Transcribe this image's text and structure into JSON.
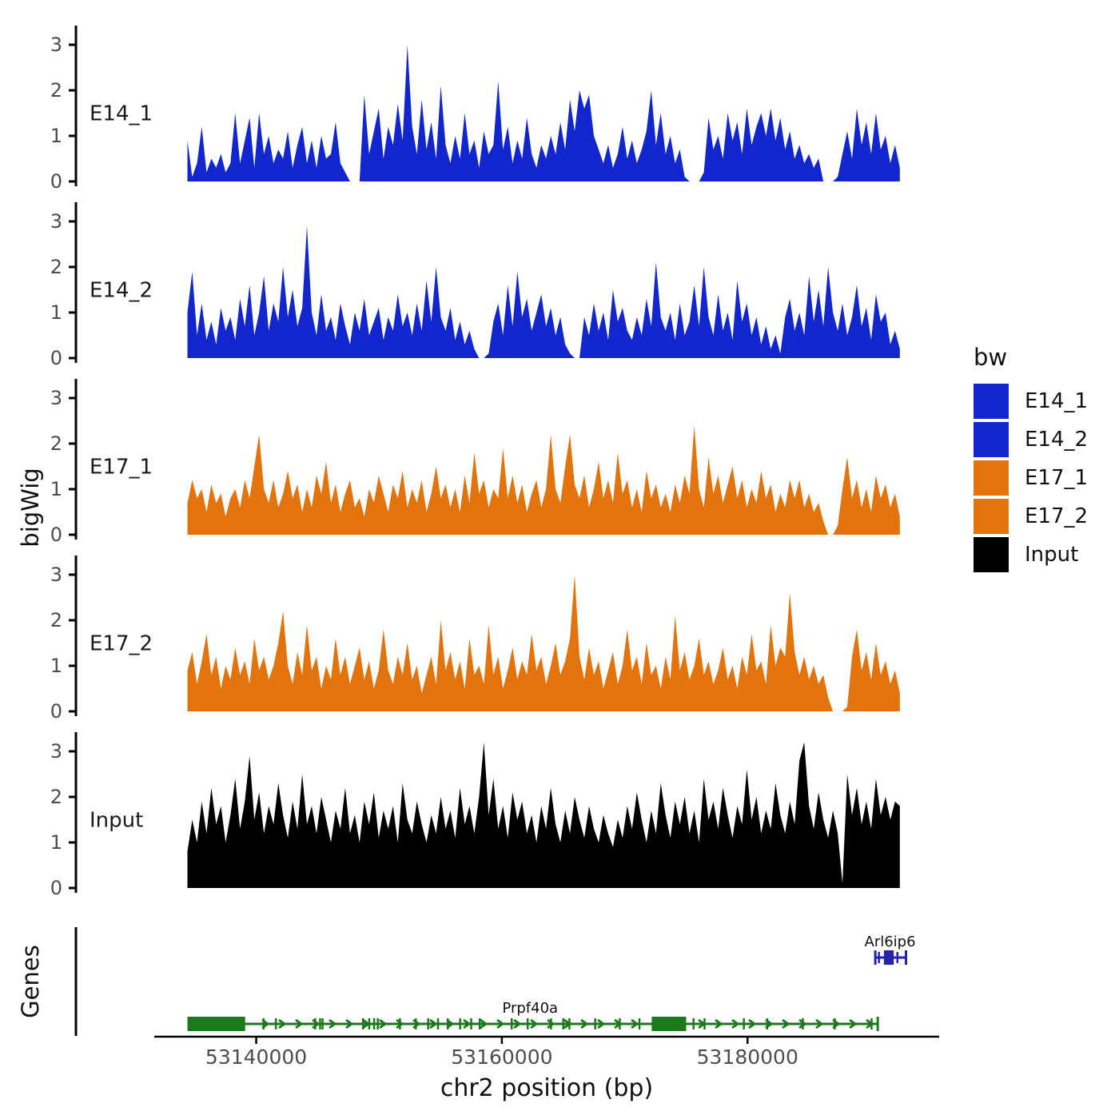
{
  "axes": {
    "y_title": "bigWig",
    "genes_title": "Genes",
    "x_title": "chr2 position (bp)"
  },
  "legend": {
    "title": "bw",
    "entries": [
      {
        "label": "E14_1",
        "color": "#1226CE"
      },
      {
        "label": "E14_2",
        "color": "#1226CE"
      },
      {
        "label": "E17_1",
        "color": "#E2730D"
      },
      {
        "label": "E17_2",
        "color": "#E2730D"
      },
      {
        "label": "Input",
        "color": "#000000"
      }
    ]
  },
  "chart_data": {
    "type": "area",
    "title": "",
    "xlabel": "chr2 position (bp)",
    "ylabel": "bigWig",
    "x_domain": [
      53131700,
      53195600
    ],
    "signal_span": [
      53134400,
      53192400
    ],
    "x_ticks": [
      {
        "pos": 53140000,
        "label": "53140000"
      },
      {
        "pos": 53160000,
        "label": "53160000"
      },
      {
        "pos": 53180000,
        "label": "53180000"
      }
    ],
    "y_ticks": [
      0,
      1,
      2,
      3
    ],
    "ylim": [
      0,
      3.3
    ],
    "tracks": [
      {
        "name": "E14_1",
        "color": "#1226CE",
        "values": [
          0.9,
          0.1,
          0.4,
          1.2,
          0.2,
          0.5,
          0.3,
          0.6,
          0.2,
          0.4,
          1.5,
          0.4,
          0.9,
          1.4,
          0.3,
          1.5,
          0.6,
          1.0,
          0.4,
          0.7,
          0.5,
          1.1,
          0.3,
          0.8,
          1.2,
          0.4,
          0.9,
          0.3,
          1.0,
          0.5,
          0.6,
          1.3,
          0.4,
          0.2,
          0,
          0,
          0,
          1.9,
          0.6,
          1.1,
          1.6,
          0.5,
          1.2,
          0.8,
          1.7,
          0.9,
          3.0,
          1.2,
          0.6,
          1.8,
          0.7,
          1.3,
          0.5,
          2.1,
          0.8,
          0.4,
          1.0,
          0.5,
          1.5,
          0.6,
          0.9,
          0.3,
          1.1,
          0.6,
          0.8,
          2.2,
          0.7,
          1.2,
          0.4,
          0.9,
          0.5,
          1.4,
          0.6,
          0.3,
          0.8,
          0.5,
          1.0,
          0.6,
          1.3,
          0.7,
          1.8,
          1.1,
          2.0,
          1.6,
          1.9,
          1.0,
          0.7,
          0.4,
          0.8,
          0.3,
          0.6,
          1.2,
          0.5,
          0.9,
          0.4,
          0.7,
          1.1,
          2.0,
          0.8,
          1.5,
          0.6,
          1.0,
          0.4,
          0.7,
          0.1,
          0,
          0,
          0,
          0.2,
          1.4,
          0.7,
          1.0,
          0.5,
          1.5,
          0.9,
          1.3,
          0.6,
          1.6,
          0.8,
          1.2,
          1.5,
          1.0,
          1.6,
          0.9,
          1.4,
          0.7,
          1.1,
          0.5,
          0.8,
          0.4,
          0.6,
          0.3,
          0.5,
          0,
          0,
          0,
          0.1,
          0.6,
          1.1,
          0.5,
          1.6,
          0.8,
          1.3,
          0.6,
          1.5,
          0.7,
          1.0,
          0.4,
          0.8,
          0.3
        ]
      },
      {
        "name": "E14_2",
        "color": "#1226CE",
        "values": [
          1.0,
          1.9,
          0.5,
          1.2,
          0.4,
          0.8,
          0.3,
          1.1,
          0.6,
          0.9,
          0.4,
          1.3,
          0.7,
          1.6,
          0.5,
          1.0,
          1.8,
          0.6,
          1.2,
          0.8,
          2.0,
          0.9,
          1.5,
          0.7,
          1.1,
          2.9,
          1.0,
          0.5,
          1.4,
          0.6,
          0.9,
          0.4,
          1.2,
          0.7,
          0.3,
          1.0,
          0.6,
          1.3,
          0.5,
          0.8,
          1.1,
          0.4,
          0.9,
          0.6,
          1.4,
          0.7,
          1.0,
          0.5,
          1.2,
          0.6,
          1.7,
          0.8,
          2.0,
          0.9,
          0.6,
          1.1,
          0.4,
          0.8,
          0.3,
          0.6,
          0.2,
          0,
          0,
          0.1,
          0.8,
          1.2,
          0.5,
          1.6,
          0.7,
          1.9,
          0.9,
          1.3,
          0.6,
          1.0,
          1.4,
          0.7,
          1.1,
          0.5,
          0.9,
          0.3,
          0.1,
          0,
          0,
          0.9,
          0.5,
          1.2,
          0.6,
          1.0,
          0.4,
          1.5,
          0.8,
          1.1,
          0.6,
          0.4,
          0.9,
          0.5,
          1.3,
          0.7,
          2.1,
          0.9,
          0.6,
          1.0,
          0.4,
          1.2,
          0.5,
          0.8,
          1.6,
          0.7,
          2.0,
          0.9,
          0.5,
          1.4,
          0.6,
          1.0,
          0.4,
          1.7,
          0.8,
          1.2,
          0.5,
          0.9,
          0.3,
          0.7,
          0.2,
          0.5,
          0.1,
          0.9,
          1.3,
          0.6,
          1.0,
          0.5,
          1.8,
          0.8,
          1.5,
          0.7,
          2.0,
          1.0,
          0.6,
          1.2,
          0.5,
          0.9,
          1.6,
          0.7,
          1.1,
          0.4,
          1.4,
          0.8,
          1.0,
          0.3,
          0.6,
          0.2
        ]
      },
      {
        "name": "E17_1",
        "color": "#E2730D",
        "values": [
          0.7,
          1.2,
          0.8,
          1.0,
          0.5,
          1.1,
          0.7,
          0.9,
          0.4,
          0.8,
          1.0,
          0.6,
          1.2,
          0.8,
          1.5,
          2.2,
          1.0,
          0.7,
          1.2,
          0.6,
          0.9,
          1.4,
          0.8,
          1.1,
          0.5,
          1.0,
          0.6,
          1.3,
          0.9,
          1.6,
          0.7,
          1.1,
          0.5,
          0.9,
          1.2,
          0.6,
          0.8,
          0.4,
          1.0,
          0.7,
          1.3,
          0.9,
          0.5,
          1.1,
          0.8,
          1.4,
          0.6,
          1.0,
          0.7,
          1.2,
          0.5,
          0.9,
          1.5,
          0.8,
          1.1,
          0.6,
          1.0,
          0.5,
          1.3,
          0.7,
          1.8,
          0.9,
          1.2,
          0.6,
          1.0,
          0.8,
          1.9,
          0.8,
          1.3,
          0.7,
          1.1,
          0.5,
          0.9,
          1.2,
          0.6,
          1.0,
          2.2,
          1.0,
          0.7,
          1.5,
          2.2,
          1.1,
          0.8,
          1.3,
          0.6,
          1.0,
          1.6,
          0.8,
          1.2,
          0.7,
          1.8,
          0.9,
          1.2,
          0.6,
          1.0,
          0.5,
          1.4,
          0.8,
          1.1,
          0.6,
          0.9,
          0.5,
          1.1,
          0.7,
          1.3,
          0.9,
          2.4,
          1.0,
          0.6,
          1.7,
          0.9,
          1.3,
          0.7,
          1.1,
          1.5,
          0.8,
          1.2,
          0.6,
          1.0,
          0.7,
          1.4,
          0.8,
          1.1,
          0.5,
          0.9,
          0.6,
          1.2,
          0.8,
          1.2,
          0.6,
          0.9,
          0.5,
          0.7,
          0.3,
          0,
          0,
          0.2,
          1.0,
          1.7,
          0.8,
          1.2,
          0.6,
          1.0,
          0.5,
          1.3,
          0.8,
          1.1,
          0.6,
          0.9,
          0.4
        ]
      },
      {
        "name": "E17_2",
        "color": "#E2730D",
        "values": [
          0.9,
          1.3,
          0.6,
          1.1,
          1.7,
          0.8,
          1.2,
          0.5,
          1.0,
          0.7,
          1.4,
          0.8,
          1.1,
          0.6,
          1.6,
          0.9,
          1.2,
          0.7,
          1.0,
          1.5,
          2.2,
          1.0,
          0.6,
          1.3,
          0.8,
          1.9,
          0.9,
          1.2,
          0.5,
          1.0,
          0.7,
          1.6,
          0.8,
          1.2,
          0.6,
          1.0,
          1.4,
          0.7,
          1.1,
          0.5,
          0.9,
          1.8,
          0.9,
          0.6,
          1.2,
          0.8,
          1.5,
          0.7,
          1.0,
          0.4,
          0.8,
          1.2,
          0.6,
          2.0,
          0.9,
          1.3,
          0.7,
          1.1,
          0.5,
          1.6,
          0.8,
          1.0,
          0.6,
          1.9,
          0.8,
          1.2,
          0.5,
          0.9,
          1.4,
          0.7,
          1.1,
          0.8,
          1.7,
          0.9,
          1.2,
          0.6,
          1.0,
          1.5,
          0.8,
          1.1,
          1.6,
          3.0,
          1.2,
          0.7,
          1.4,
          0.8,
          1.1,
          0.5,
          0.9,
          1.3,
          0.6,
          1.0,
          1.8,
          0.9,
          1.2,
          0.6,
          1.5,
          0.8,
          1.0,
          0.5,
          1.2,
          0.7,
          2.1,
          0.9,
          1.3,
          0.7,
          1.0,
          1.6,
          0.8,
          1.1,
          0.6,
          0.9,
          1.4,
          0.7,
          1.0,
          0.5,
          1.2,
          0.8,
          1.7,
          0.9,
          1.1,
          0.6,
          1.9,
          1.0,
          1.4,
          1.2,
          2.6,
          1.3,
          0.8,
          1.2,
          0.7,
          1.0,
          0.6,
          0.8,
          0.3,
          0,
          0,
          0,
          0.1,
          1.2,
          1.8,
          0.9,
          1.3,
          0.7,
          1.5,
          0.8,
          1.1,
          0.6,
          0.9,
          0.4
        ]
      },
      {
        "name": "Input",
        "color": "#000000",
        "values": [
          0.8,
          1.5,
          1.0,
          1.9,
          1.2,
          2.2,
          1.4,
          1.8,
          1.0,
          1.6,
          2.4,
          1.3,
          1.9,
          2.9,
          1.5,
          2.1,
          1.2,
          1.8,
          1.4,
          2.3,
          1.6,
          1.1,
          1.9,
          1.3,
          2.5,
          1.4,
          1.8,
          1.2,
          2.0,
          1.5,
          1.0,
          1.7,
          1.3,
          2.2,
          1.2,
          1.6,
          1.0,
          1.9,
          1.4,
          2.1,
          1.1,
          1.7,
          1.3,
          1.8,
          1.0,
          2.3,
          1.5,
          1.2,
          1.9,
          1.4,
          1.0,
          1.6,
          1.2,
          2.0,
          1.3,
          1.7,
          1.1,
          2.2,
          1.4,
          1.8,
          1.2,
          2.0,
          3.2,
          1.6,
          2.4,
          1.3,
          1.8,
          1.1,
          2.1,
          1.5,
          1.9,
          1.2,
          1.6,
          1.0,
          1.8,
          1.3,
          2.2,
          1.4,
          1.0,
          1.7,
          1.2,
          2.0,
          1.5,
          1.1,
          1.8,
          1.3,
          1.0,
          1.6,
          1.2,
          0.9,
          1.5,
          1.1,
          1.8,
          1.3,
          2.1,
          1.5,
          1.0,
          1.7,
          1.2,
          2.3,
          1.6,
          1.1,
          1.9,
          1.4,
          2.0,
          1.2,
          1.7,
          1.0,
          2.4,
          1.5,
          1.9,
          1.3,
          2.2,
          1.6,
          1.1,
          1.8,
          1.4,
          2.6,
          1.5,
          2.0,
          1.2,
          1.7,
          1.3,
          2.3,
          1.6,
          1.2,
          1.9,
          1.4,
          2.8,
          3.2,
          1.8,
          1.3,
          2.1,
          1.5,
          1.1,
          1.7,
          1.2,
          0.1,
          2.5,
          1.6,
          2.2,
          1.4,
          1.9,
          1.3,
          2.4,
          1.6,
          2.0,
          1.5,
          1.9,
          1.8
        ]
      }
    ],
    "genes": [
      {
        "name": "Prpf40a",
        "strand": "-",
        "color": "#1A7A1A",
        "row": 0,
        "start": 53134500,
        "end": 53190600,
        "boxes": [
          [
            53134500,
            53139100
          ],
          [
            53172200,
            53175000
          ]
        ],
        "exon_ticks": [
          53140600,
          53141600,
          53144800,
          53145200,
          53145400,
          53148700,
          53149200,
          53149600,
          53149900,
          53151700,
          53153000,
          53154000,
          53154800,
          53155600,
          53156600,
          53157500,
          53158200,
          53160800,
          53162100,
          53164000,
          53165000,
          53165500,
          53167600,
          53169600,
          53171200,
          53175600,
          53176500,
          53179700,
          53181600,
          53184500,
          53187100,
          53190100
        ],
        "label_pos": 53162300
      },
      {
        "name": "Arl6ip6",
        "strand": "+",
        "color": "#2323AC",
        "row": 1,
        "start": 53190400,
        "end": 53192900,
        "boxes": [
          [
            53191100,
            53191900
          ]
        ],
        "exon_ticks": [
          53190700,
          53192200
        ],
        "label_pos": 53191600
      }
    ]
  }
}
